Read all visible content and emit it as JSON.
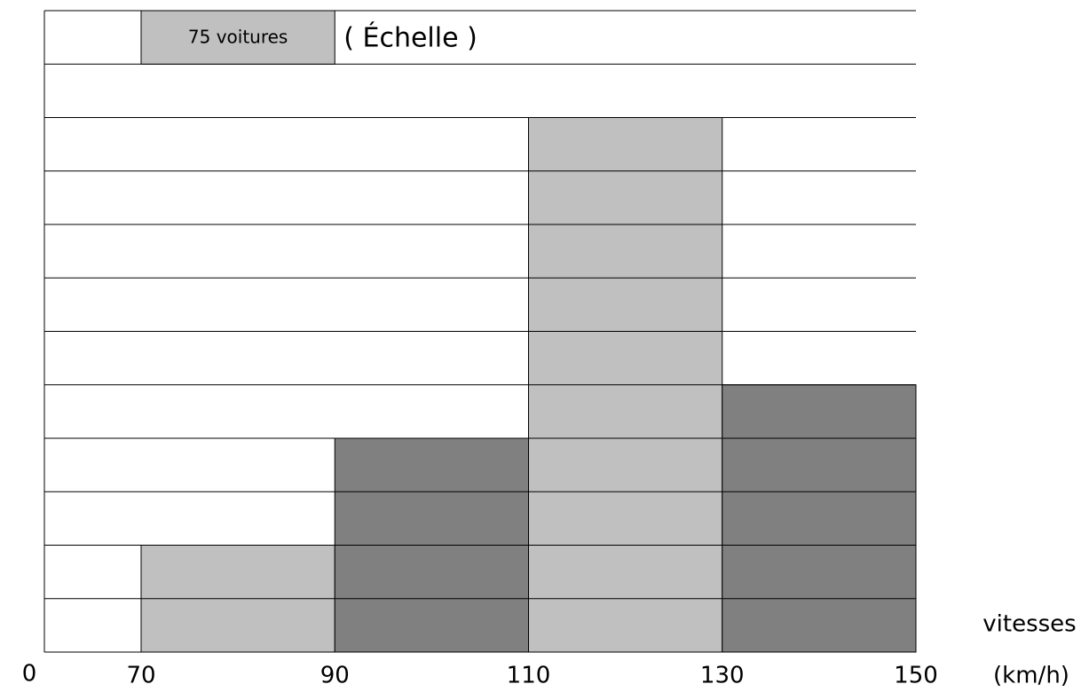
{
  "chart_data": {
    "type": "histogram",
    "bins": [
      70,
      90,
      110,
      130,
      150
    ],
    "values": [
      150,
      300,
      750,
      375
    ],
    "colors": [
      "#c0c0c0",
      "#808080",
      "#c0c0c0",
      "#808080"
    ],
    "scale": {
      "value": 75,
      "label": "75 voitures"
    },
    "scale_title": "( Échelle )",
    "origin_label": "0",
    "xlim": [
      70,
      150
    ],
    "xticks": [
      70,
      90,
      110,
      130,
      150
    ],
    "ylim": [
      0,
      900
    ],
    "x_label": "vitesses",
    "x_unit": "(km/h)",
    "grid": true
  }
}
